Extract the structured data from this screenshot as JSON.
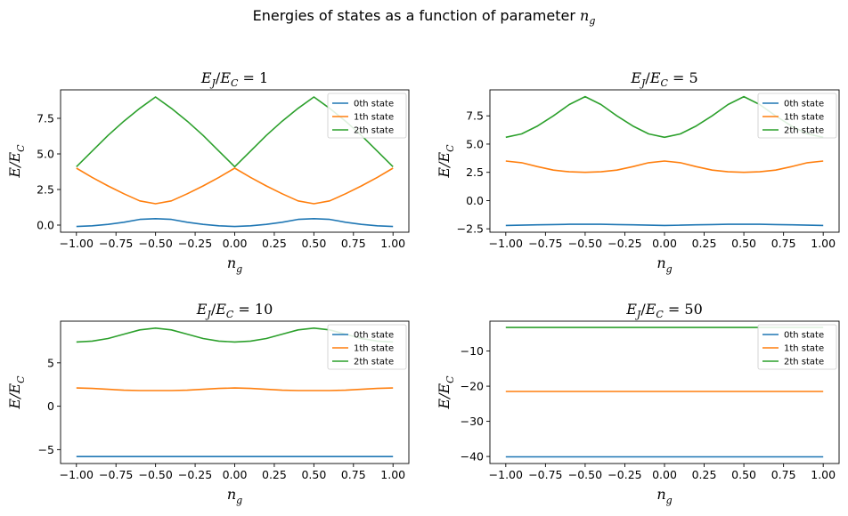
{
  "suptitle": {
    "text": "Energies of states as a function of parameter",
    "var": "n",
    "sub": "g"
  },
  "chart_data": [
    {
      "type": "line",
      "title": {
        "lhs": "E",
        "lhs_sub": "J",
        "rhs": "E",
        "rhs_sub": "C",
        "value": "1"
      },
      "xlabel": {
        "main": "n",
        "sub": "g"
      },
      "ylabel": {
        "main": "E/E",
        "sub": "C"
      },
      "xlim": [
        -1.1,
        1.1
      ],
      "ylim": [
        -0.5,
        9.5
      ],
      "xticks": [
        -1.0,
        -0.75,
        -0.5,
        -0.25,
        0.0,
        0.25,
        0.5,
        0.75,
        1.0
      ],
      "xtick_labels": [
        "−1.00",
        "−0.75",
        "−0.50",
        "−0.25",
        "0.00",
        "0.25",
        "0.50",
        "0.75",
        "1.00"
      ],
      "yticks": [
        0.0,
        2.5,
        5.0,
        7.5
      ],
      "ytick_labels": [
        "0.0",
        "2.5",
        "5.0",
        "7.5"
      ],
      "legend_loc": "upper right",
      "x": [
        -1.0,
        -0.9,
        -0.8,
        -0.7,
        -0.6,
        -0.5,
        -0.4,
        -0.3,
        -0.2,
        -0.1,
        0.0,
        0.1,
        0.2,
        0.3,
        0.4,
        0.5,
        0.6,
        0.7,
        0.8,
        0.9,
        1.0
      ],
      "series": [
        {
          "name": "0th state",
          "values": [
            -0.1,
            -0.05,
            0.05,
            0.2,
            0.4,
            0.45,
            0.4,
            0.2,
            0.05,
            -0.05,
            -0.1,
            -0.05,
            0.05,
            0.2,
            0.4,
            0.45,
            0.4,
            0.2,
            0.05,
            -0.05,
            -0.1
          ]
        },
        {
          "name": "1th state",
          "values": [
            4.0,
            3.35,
            2.75,
            2.2,
            1.7,
            1.5,
            1.7,
            2.2,
            2.75,
            3.35,
            4.0,
            3.35,
            2.75,
            2.2,
            1.7,
            1.5,
            1.7,
            2.2,
            2.75,
            3.35,
            4.0
          ]
        },
        {
          "name": "2th state",
          "values": [
            4.1,
            5.2,
            6.3,
            7.3,
            8.2,
            9.0,
            8.2,
            7.3,
            6.3,
            5.2,
            4.1,
            5.2,
            6.3,
            7.3,
            8.2,
            9.0,
            8.2,
            7.3,
            6.3,
            5.2,
            4.1
          ]
        }
      ]
    },
    {
      "type": "line",
      "title": {
        "lhs": "E",
        "lhs_sub": "J",
        "rhs": "E",
        "rhs_sub": "C",
        "value": "5"
      },
      "xlabel": {
        "main": "n",
        "sub": "g"
      },
      "ylabel": {
        "main": "E/E",
        "sub": "C"
      },
      "xlim": [
        -1.1,
        1.1
      ],
      "ylim": [
        -2.8,
        9.8
      ],
      "xticks": [
        -1.0,
        -0.75,
        -0.5,
        -0.25,
        0.0,
        0.25,
        0.5,
        0.75,
        1.0
      ],
      "xtick_labels": [
        "−1.00",
        "−0.75",
        "−0.50",
        "−0.25",
        "0.00",
        "0.25",
        "0.50",
        "0.75",
        "1.00"
      ],
      "yticks": [
        -2.5,
        0.0,
        2.5,
        5.0,
        7.5
      ],
      "ytick_labels": [
        "−2.5",
        "0.0",
        "2.5",
        "5.0",
        "7.5"
      ],
      "legend_loc": "upper right",
      "x": [
        -1.0,
        -0.9,
        -0.8,
        -0.7,
        -0.6,
        -0.5,
        -0.4,
        -0.3,
        -0.2,
        -0.1,
        0.0,
        0.1,
        0.2,
        0.3,
        0.4,
        0.5,
        0.6,
        0.7,
        0.8,
        0.9,
        1.0
      ],
      "series": [
        {
          "name": "0th state",
          "values": [
            -2.2,
            -2.18,
            -2.15,
            -2.12,
            -2.1,
            -2.1,
            -2.1,
            -2.12,
            -2.15,
            -2.18,
            -2.2,
            -2.18,
            -2.15,
            -2.12,
            -2.1,
            -2.1,
            -2.1,
            -2.12,
            -2.15,
            -2.18,
            -2.2
          ]
        },
        {
          "name": "1th state",
          "values": [
            3.5,
            3.35,
            3.0,
            2.7,
            2.55,
            2.5,
            2.55,
            2.7,
            3.0,
            3.35,
            3.5,
            3.35,
            3.0,
            2.7,
            2.55,
            2.5,
            2.55,
            2.7,
            3.0,
            3.35,
            3.5
          ]
        },
        {
          "name": "2th state",
          "values": [
            5.6,
            5.9,
            6.6,
            7.5,
            8.5,
            9.2,
            8.5,
            7.5,
            6.6,
            5.9,
            5.6,
            5.9,
            6.6,
            7.5,
            8.5,
            9.2,
            8.5,
            7.5,
            6.6,
            5.9,
            5.6
          ]
        }
      ]
    },
    {
      "type": "line",
      "title": {
        "lhs": "E",
        "lhs_sub": "J",
        "rhs": "E",
        "rhs_sub": "C",
        "value": "10"
      },
      "xlabel": {
        "main": "n",
        "sub": "g"
      },
      "ylabel": {
        "main": "E/E",
        "sub": "C"
      },
      "xlim": [
        -1.1,
        1.1
      ],
      "ylim": [
        -6.6,
        9.8
      ],
      "xticks": [
        -1.0,
        -0.75,
        -0.5,
        -0.25,
        0.0,
        0.25,
        0.5,
        0.75,
        1.0
      ],
      "xtick_labels": [
        "−1.00",
        "−0.75",
        "−0.50",
        "−0.25",
        "0.00",
        "0.25",
        "0.50",
        "0.75",
        "1.00"
      ],
      "yticks": [
        -5,
        0,
        5
      ],
      "ytick_labels": [
        "−5",
        "0",
        "5"
      ],
      "legend_loc": "upper right",
      "x": [
        -1.0,
        -0.9,
        -0.8,
        -0.7,
        -0.6,
        -0.5,
        -0.4,
        -0.3,
        -0.2,
        -0.1,
        0.0,
        0.1,
        0.2,
        0.3,
        0.4,
        0.5,
        0.6,
        0.7,
        0.8,
        0.9,
        1.0
      ],
      "series": [
        {
          "name": "0th state",
          "values": [
            -5.8,
            -5.8,
            -5.8,
            -5.8,
            -5.8,
            -5.8,
            -5.8,
            -5.8,
            -5.8,
            -5.8,
            -5.8,
            -5.8,
            -5.8,
            -5.8,
            -5.8,
            -5.8,
            -5.8,
            -5.8,
            -5.8,
            -5.8,
            -5.8
          ]
        },
        {
          "name": "1th state",
          "values": [
            2.1,
            2.05,
            1.95,
            1.85,
            1.8,
            1.8,
            1.8,
            1.85,
            1.95,
            2.05,
            2.1,
            2.05,
            1.95,
            1.85,
            1.8,
            1.8,
            1.8,
            1.85,
            1.95,
            2.05,
            2.1
          ]
        },
        {
          "name": "2th state",
          "values": [
            7.4,
            7.5,
            7.8,
            8.3,
            8.8,
            9.0,
            8.8,
            8.3,
            7.8,
            7.5,
            7.4,
            7.5,
            7.8,
            8.3,
            8.8,
            9.0,
            8.8,
            8.3,
            7.8,
            7.5,
            7.4
          ]
        }
      ]
    },
    {
      "type": "line",
      "title": {
        "lhs": "E",
        "lhs_sub": "J",
        "rhs": "E",
        "rhs_sub": "C",
        "value": "50"
      },
      "xlabel": {
        "main": "n",
        "sub": "g"
      },
      "ylabel": {
        "main": "E/E",
        "sub": "C"
      },
      "xlim": [
        -1.1,
        1.1
      ],
      "ylim": [
        -42,
        -1.5
      ],
      "xticks": [
        -1.0,
        -0.75,
        -0.5,
        -0.25,
        0.0,
        0.25,
        0.5,
        0.75,
        1.0
      ],
      "xtick_labels": [
        "−1.00",
        "−0.75",
        "−0.50",
        "−0.25",
        "0.00",
        "0.25",
        "0.50",
        "0.75",
        "1.00"
      ],
      "yticks": [
        -40,
        -30,
        -20,
        -10
      ],
      "ytick_labels": [
        "−40",
        "−30",
        "−20",
        "−10"
      ],
      "legend_loc": "upper right",
      "x": [
        -1.0,
        -0.5,
        0.0,
        0.5,
        1.0
      ],
      "series": [
        {
          "name": "0th state",
          "values": [
            -40.1,
            -40.1,
            -40.1,
            -40.1,
            -40.1
          ]
        },
        {
          "name": "1th state",
          "values": [
            -21.5,
            -21.5,
            -21.5,
            -21.5,
            -21.5
          ]
        },
        {
          "name": "2th state",
          "values": [
            -3.3,
            -3.3,
            -3.3,
            -3.3,
            -3.3
          ]
        }
      ]
    }
  ],
  "colors": [
    "#1f77b4",
    "#ff7f0e",
    "#2ca02c"
  ]
}
